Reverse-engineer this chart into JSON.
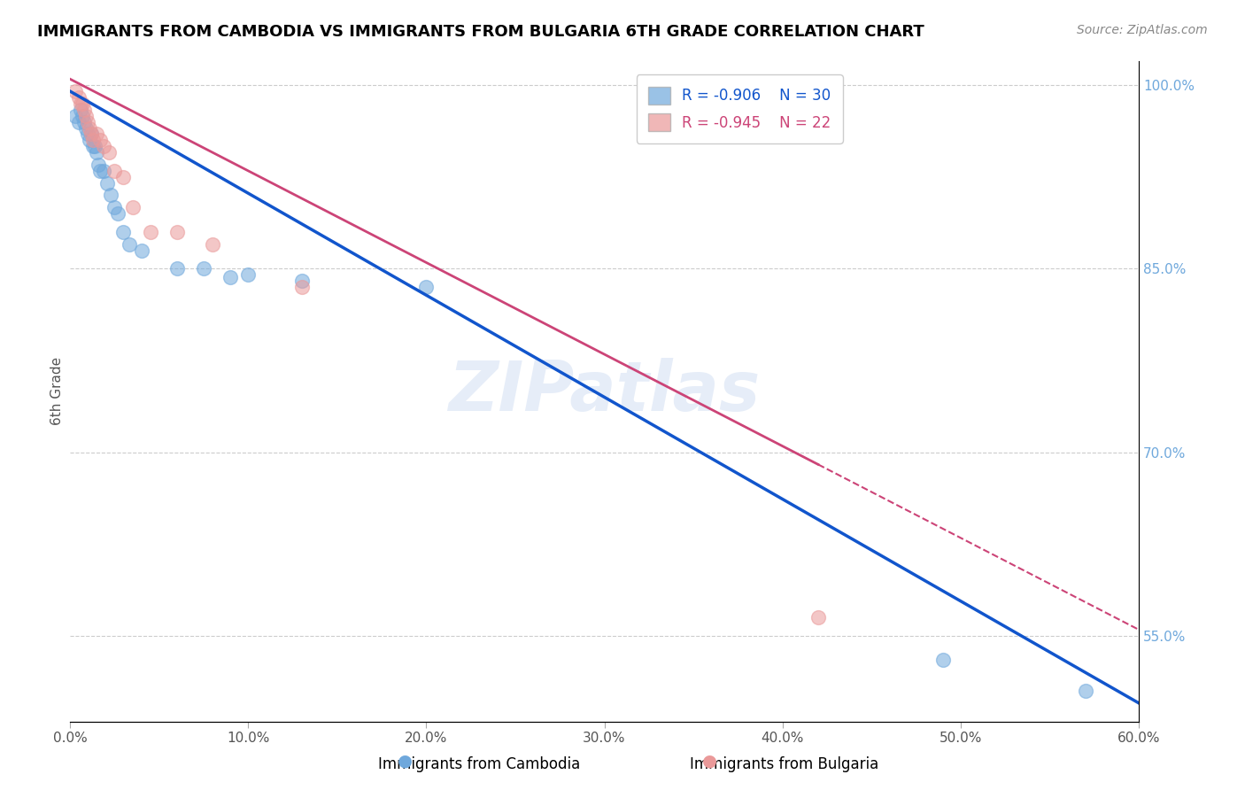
{
  "title": "IMMIGRANTS FROM CAMBODIA VS IMMIGRANTS FROM BULGARIA 6TH GRADE CORRELATION CHART",
  "source": "Source: ZipAtlas.com",
  "xlabel_legend1": "Immigrants from Cambodia",
  "xlabel_legend2": "Immigrants from Bulgaria",
  "ylabel": "6th Grade",
  "r1": -0.906,
  "n1": 30,
  "r2": -0.945,
  "n2": 22,
  "color1": "#6fa8dc",
  "color2": "#ea9999",
  "line_color1": "#1155cc",
  "line_color2": "#cc4477",
  "watermark": "ZIPatlas",
  "xlim": [
    0.0,
    0.6
  ],
  "ylim": [
    0.48,
    1.02
  ],
  "xticks": [
    0.0,
    0.1,
    0.2,
    0.3,
    0.4,
    0.5,
    0.6
  ],
  "yticks_right": [
    1.0,
    0.85,
    0.7,
    0.55
  ],
  "ytick_labels_right": [
    "100.0%",
    "85.0%",
    "70.0%",
    "55.0%"
  ],
  "blue_line_x0": 0.0,
  "blue_line_y0": 0.995,
  "blue_line_x1": 0.6,
  "blue_line_y1": 0.495,
  "pink_line_x0": 0.0,
  "pink_line_y0": 1.005,
  "pink_line_x1": 0.6,
  "pink_line_y1": 0.555,
  "pink_line_solid_end": 0.42,
  "blue_points_x": [
    0.003,
    0.005,
    0.006,
    0.007,
    0.008,
    0.009,
    0.01,
    0.011,
    0.012,
    0.013,
    0.014,
    0.015,
    0.016,
    0.017,
    0.019,
    0.021,
    0.023,
    0.025,
    0.027,
    0.03,
    0.033,
    0.04,
    0.06,
    0.075,
    0.09,
    0.1,
    0.13,
    0.2,
    0.49,
    0.57
  ],
  "blue_points_y": [
    0.975,
    0.97,
    0.98,
    0.975,
    0.97,
    0.965,
    0.96,
    0.955,
    0.96,
    0.95,
    0.95,
    0.945,
    0.935,
    0.93,
    0.93,
    0.92,
    0.91,
    0.9,
    0.895,
    0.88,
    0.87,
    0.865,
    0.85,
    0.85,
    0.843,
    0.845,
    0.84,
    0.835,
    0.53,
    0.505
  ],
  "pink_points_x": [
    0.003,
    0.005,
    0.006,
    0.007,
    0.008,
    0.009,
    0.01,
    0.011,
    0.012,
    0.013,
    0.015,
    0.017,
    0.019,
    0.022,
    0.025,
    0.03,
    0.035,
    0.045,
    0.06,
    0.08,
    0.13,
    0.42
  ],
  "pink_points_y": [
    0.995,
    0.99,
    0.985,
    0.985,
    0.98,
    0.975,
    0.97,
    0.965,
    0.96,
    0.955,
    0.96,
    0.955,
    0.95,
    0.945,
    0.93,
    0.925,
    0.9,
    0.88,
    0.88,
    0.87,
    0.835,
    0.565
  ]
}
